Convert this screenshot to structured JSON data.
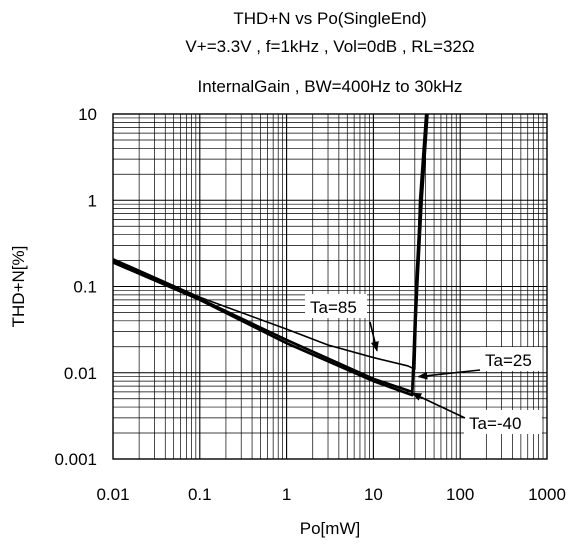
{
  "chart_data": {
    "type": "line",
    "title_lines": [
      "THD+N vs Po(SingleEnd)",
      "V+=3.3V , f=1kHz , Vol=0dB , RL=32Ω",
      "InternalGain , BW=400Hz to 30kHz"
    ],
    "xlabel": "Po[mW]",
    "ylabel": "THD+N[%]",
    "xscale": "log",
    "yscale": "log",
    "xlim": [
      0.01,
      1000
    ],
    "ylim": [
      0.001,
      10
    ],
    "grid": true,
    "xtick_labels": [
      "0.01",
      "0.1",
      "1",
      "10",
      "100",
      "1000"
    ],
    "ytick_labels": [
      "0.001",
      "0.01",
      "0.1",
      "1",
      "10"
    ],
    "series": [
      {
        "name": "Ta=85",
        "x": [
          0.01,
          0.1,
          1,
          3,
          10,
          25,
          30,
          34,
          40
        ],
        "y": [
          0.21,
          0.075,
          0.032,
          0.021,
          0.015,
          0.012,
          0.011,
          1,
          10
        ],
        "stroke_width": 1.6
      },
      {
        "name": "Ta=25",
        "x": [
          0.01,
          0.1,
          1,
          10,
          28,
          32,
          36,
          42
        ],
        "y": [
          0.2,
          0.072,
          0.024,
          0.0085,
          0.006,
          0.1,
          1,
          10
        ],
        "stroke_width": 2.6
      },
      {
        "name": "Ta=-40",
        "x": [
          0.01,
          0.1,
          1,
          10,
          28,
          31,
          35,
          41
        ],
        "y": [
          0.19,
          0.07,
          0.022,
          0.008,
          0.0055,
          0.1,
          1,
          10
        ],
        "stroke_width": 2.6
      }
    ],
    "annotations": [
      {
        "text": "Ta=85",
        "points_to": [
          11,
          0.018
        ]
      },
      {
        "text": "Ta=25",
        "points_to": [
          33,
          0.009
        ]
      },
      {
        "text": "Ta=-40",
        "points_to": [
          28,
          0.0058
        ]
      }
    ]
  }
}
